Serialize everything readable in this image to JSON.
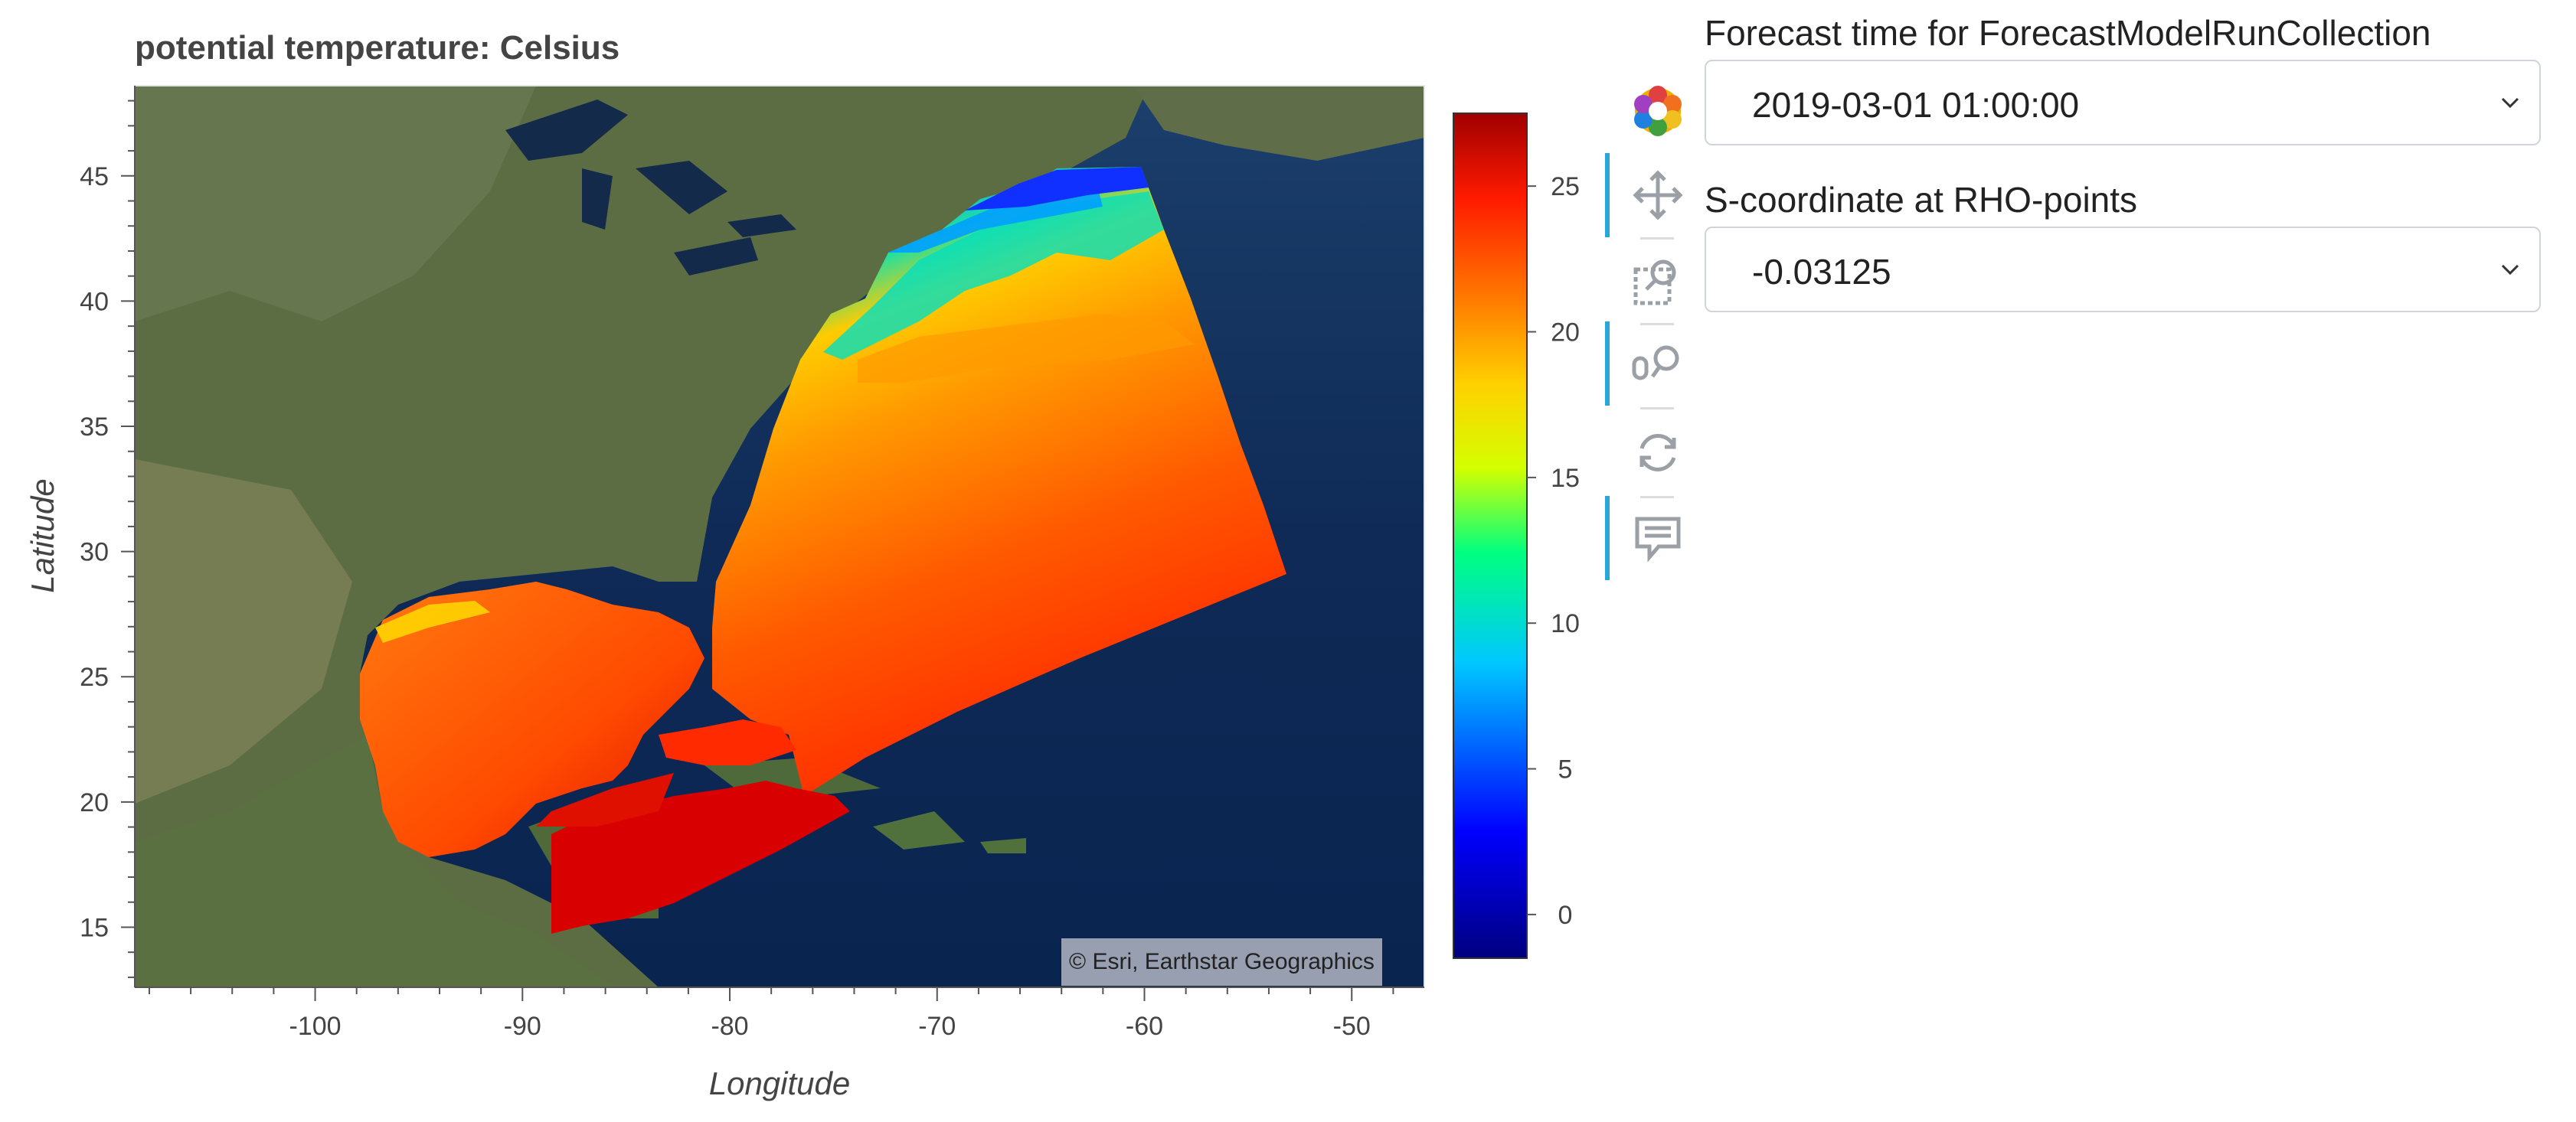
{
  "plot": {
    "title": "potential temperature: Celsius",
    "xlabel": "Longitude",
    "ylabel": "Latitude",
    "attribution": "© Esri, Earthstar Geographics"
  },
  "chart_data": {
    "type": "heatmap",
    "title": "potential temperature: Celsius",
    "xlabel": "Longitude",
    "ylabel": "Latitude",
    "x_ticks": [
      -100,
      -90,
      -80,
      -70,
      -60,
      -50
    ],
    "y_ticks": [
      15,
      20,
      25,
      30,
      35,
      40,
      45
    ],
    "xlim": [
      -108.7,
      -46.5
    ],
    "ylim": [
      12.6,
      48.6
    ],
    "colorbar": {
      "ticks": [
        0,
        5,
        10,
        15,
        20,
        25
      ],
      "range": [
        -1.5,
        27.5
      ],
      "colormap": [
        "#00007f",
        "#0000ff",
        "#00c8ff",
        "#00ff80",
        "#d4ff00",
        "#ffd000",
        "#ff7a00",
        "#ff1a00",
        "#a00000"
      ]
    }
  },
  "toolbar": {
    "tools": [
      {
        "name": "bokeh-logo-icon",
        "active": false
      },
      {
        "name": "pan-icon",
        "active": true
      },
      {
        "name": "box-zoom-icon",
        "active": false
      },
      {
        "name": "wheel-zoom-icon",
        "active": true
      },
      {
        "name": "reset-icon",
        "active": false
      },
      {
        "name": "hover-icon",
        "active": true
      }
    ]
  },
  "widgets": {
    "forecast_time": {
      "label": "Forecast time for ForecastModelRunCollection",
      "value": "2019-03-01 01:00:00"
    },
    "s_coordinate": {
      "label": "S-coordinate at RHO-points",
      "value": "-0.03125"
    }
  }
}
